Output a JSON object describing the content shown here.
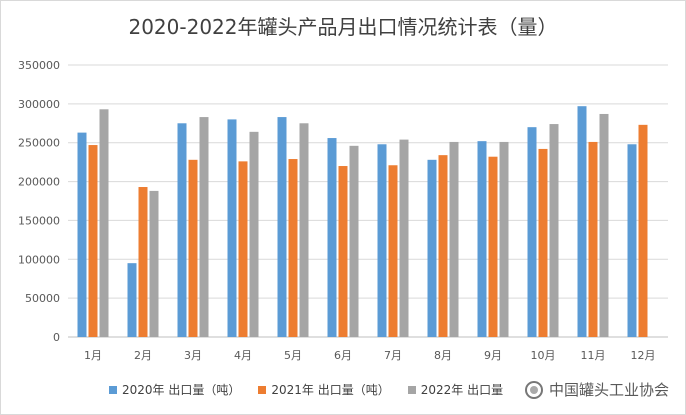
{
  "chart_data": {
    "type": "bar",
    "title": "2020-2022年罐头产品月出口情况统计表（量）",
    "categories": [
      "1月",
      "2月",
      "3月",
      "4月",
      "5月",
      "6月",
      "7月",
      "8月",
      "9月",
      "10月",
      "11月",
      "12月"
    ],
    "series": [
      {
        "name": "2020年 出口量（吨）",
        "color": "#5b9bd5",
        "values": [
          263000,
          95000,
          275000,
          280000,
          283000,
          256000,
          248000,
          228000,
          252000,
          270000,
          297000,
          248000
        ]
      },
      {
        "name": "2021年 出口量（吨）",
        "color": "#ed7d31",
        "values": [
          247000,
          193000,
          228000,
          226000,
          229000,
          220000,
          221000,
          234000,
          232000,
          242000,
          251000,
          273000
        ]
      },
      {
        "name": "2022年 出口量",
        "color": "#a5a5a5",
        "values": [
          293000,
          188000,
          283000,
          264000,
          275000,
          246000,
          254000,
          251000,
          251000,
          274000,
          287000,
          null
        ]
      }
    ],
    "ylim": [
      0,
      350000
    ],
    "yticks": [
      0,
      50000,
      100000,
      150000,
      200000,
      250000,
      300000,
      350000
    ],
    "grid": true,
    "legend_position": "bottom"
  },
  "watermark": {
    "text": "中国罐头工业协会",
    "icon": "wechat-public-account-icon"
  }
}
